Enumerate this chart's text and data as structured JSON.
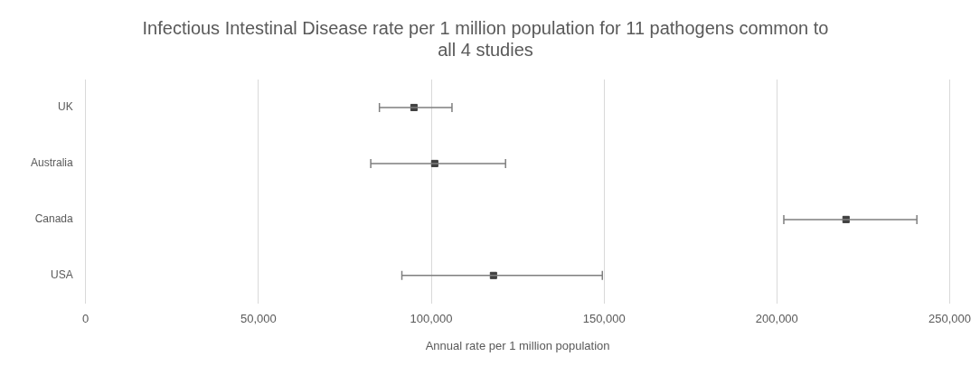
{
  "chart_data": {
    "type": "scatter",
    "orientation": "horizontal",
    "title": "Infectious Intestinal Disease rate per 1 million population for 11 pathogens common to all 4 studies",
    "xlabel": "Annual rate per 1 million population",
    "categories": [
      "UK",
      "Australia",
      "Canada",
      "USA"
    ],
    "values": [
      95000,
      101000,
      220000,
      118000
    ],
    "errors": [
      [
        85000,
        106000
      ],
      [
        82500,
        121500
      ],
      [
        202000,
        240500
      ],
      [
        91500,
        149500
      ]
    ],
    "color": "#404040",
    "xlim": [
      0,
      250000
    ],
    "marker": "square",
    "xticks": [
      {
        "value": 0,
        "label": "0"
      },
      {
        "value": 50000,
        "label": "50,000"
      },
      {
        "value": 100000,
        "label": "100,000"
      },
      {
        "value": 150000,
        "label": "150,000"
      },
      {
        "value": 200000,
        "label": "200,000"
      },
      {
        "value": 250000,
        "label": "250,000"
      }
    ],
    "grid": "x",
    "legend": false
  }
}
